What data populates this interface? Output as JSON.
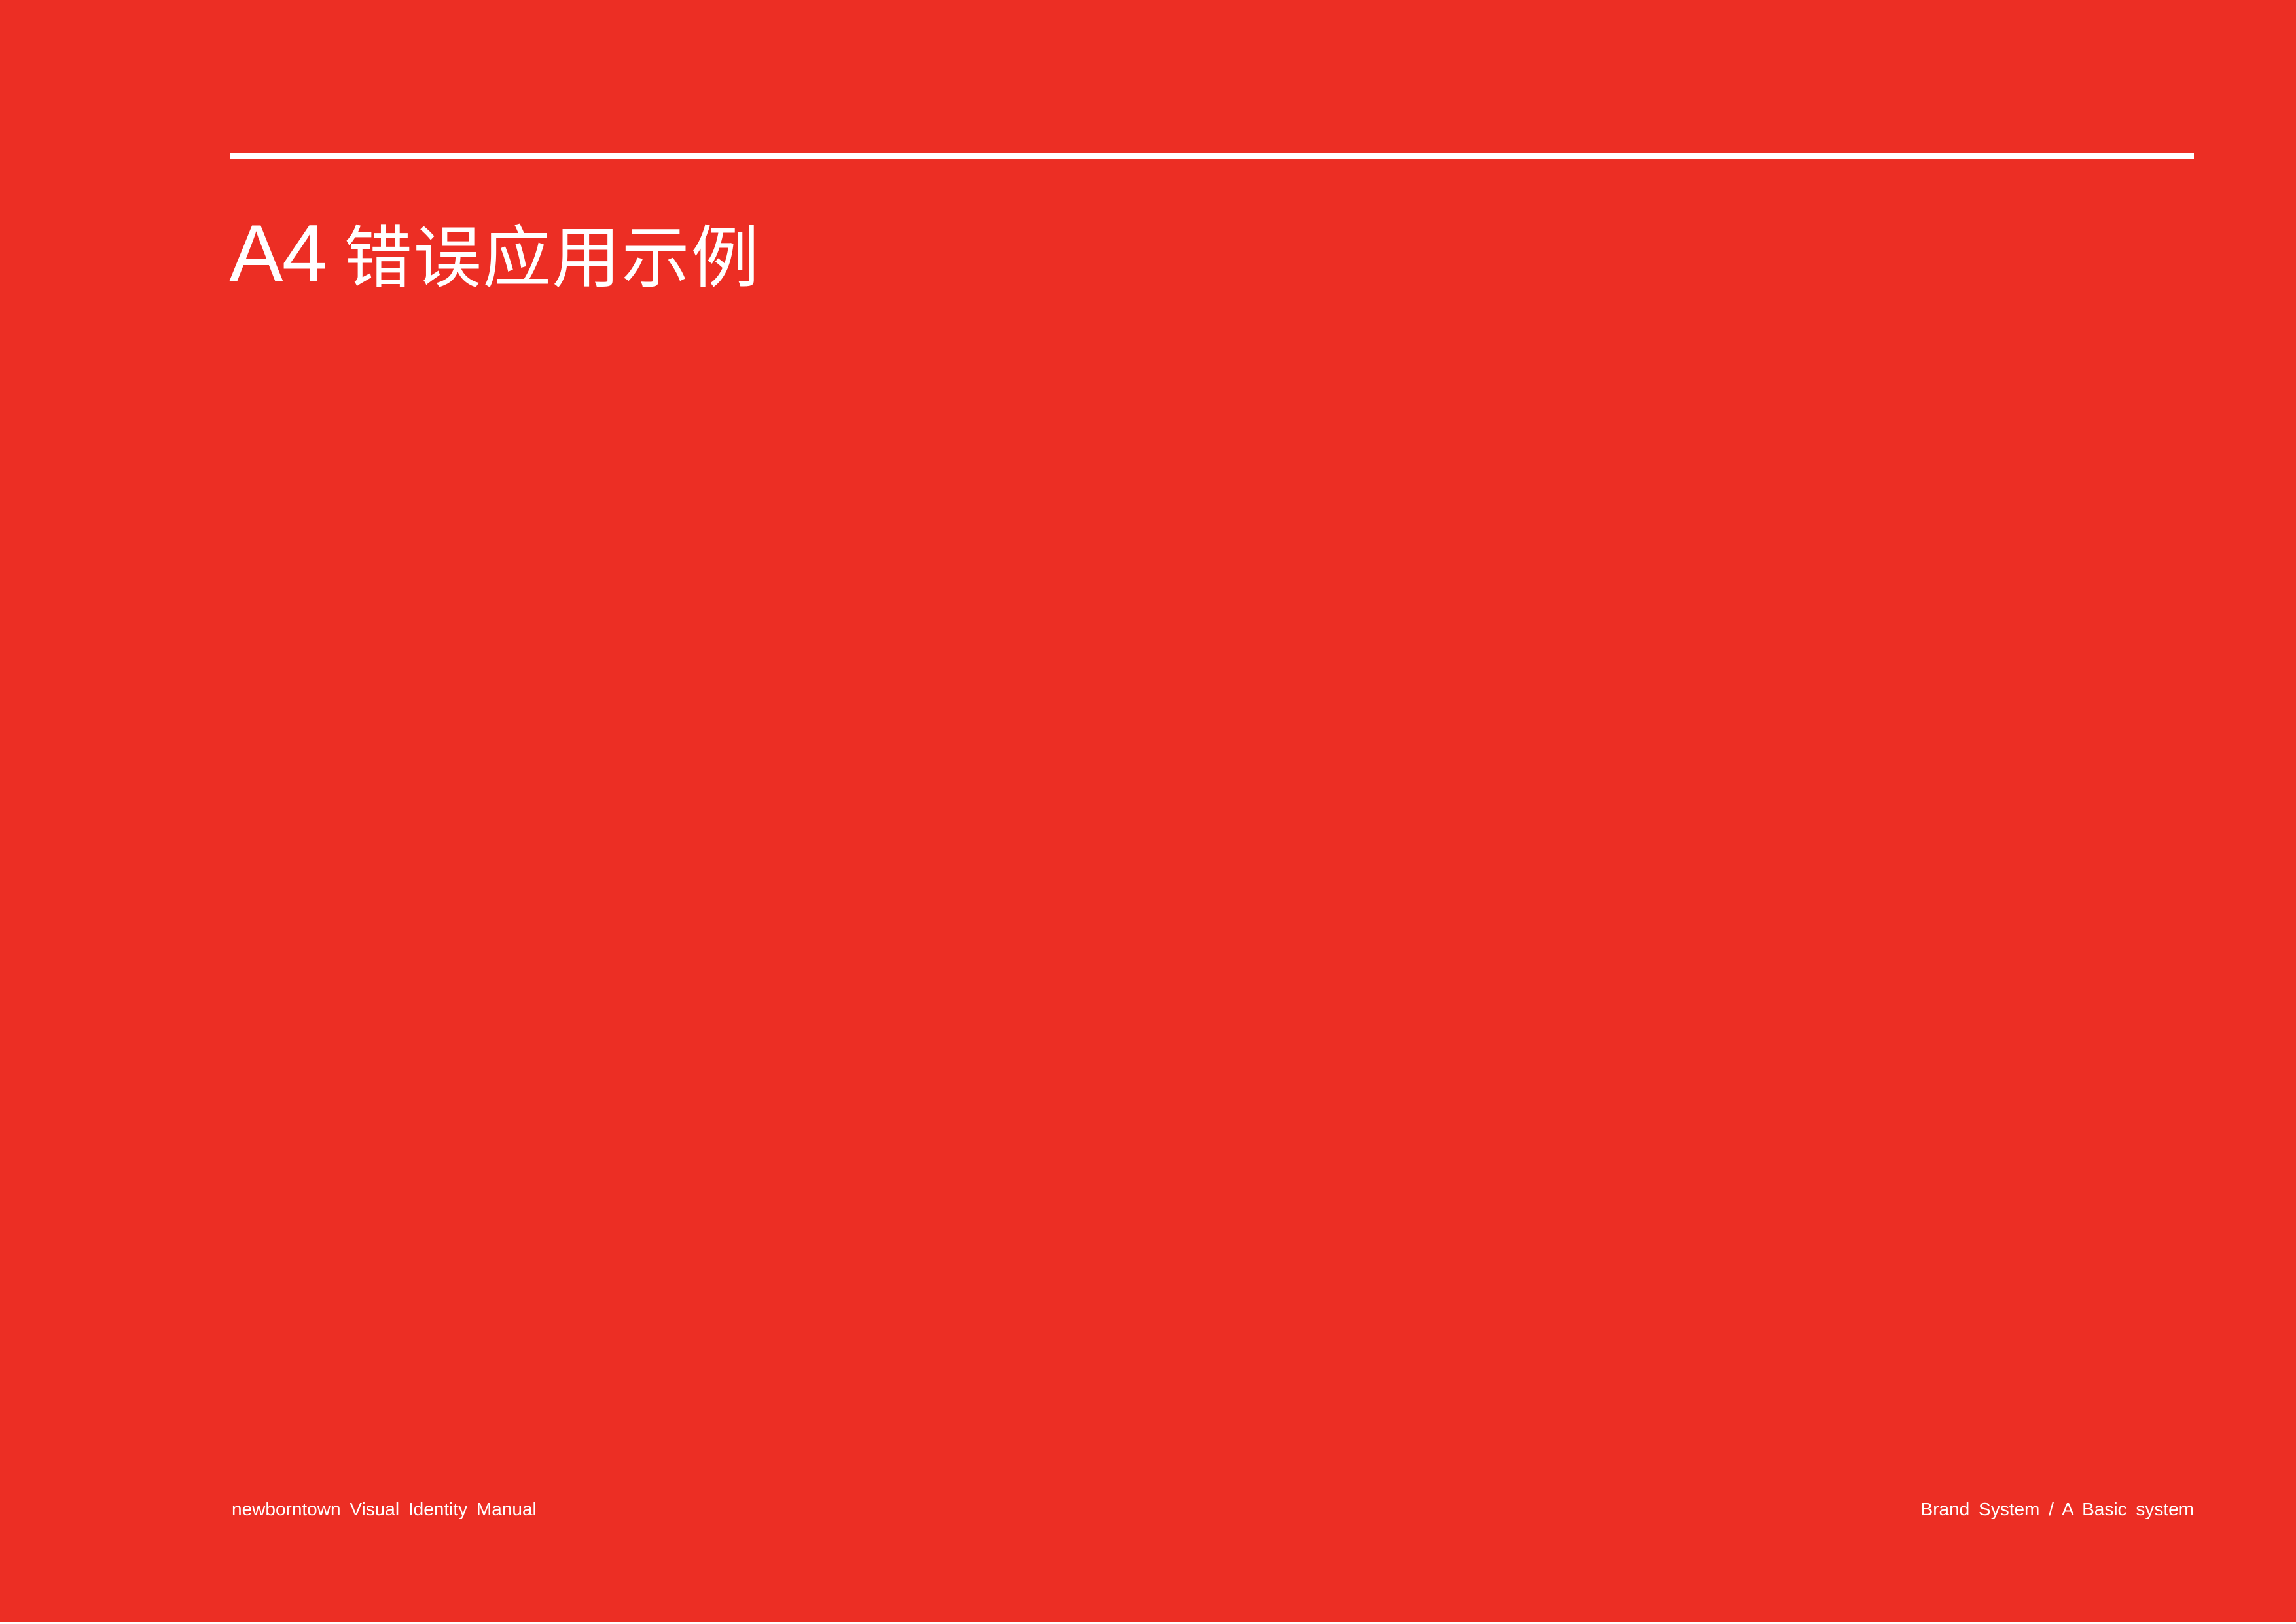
{
  "header": {
    "section_code": "A4",
    "section_title": "错误应用示例"
  },
  "footer": {
    "manual_title": "newborntown  Visual  Identity  Manual",
    "breadcrumb": "Brand System   /   A  Basic system"
  },
  "colors": {
    "background": "#EC2E24",
    "foreground": "#FFFFFF"
  }
}
